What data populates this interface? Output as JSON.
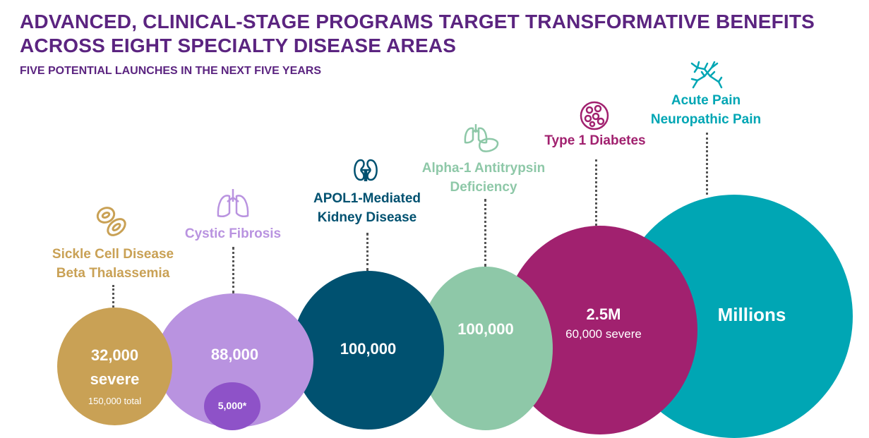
{
  "title_line1": "ADVANCED, CLINICAL-STAGE PROGRAMS TARGET TRANSFORMATIVE BENEFITS",
  "title_line2": "ACROSS EIGHT SPECIALTY DISEASE AREAS",
  "subtitle": "FIVE POTENTIAL LAUNCHES IN THE NEXT FIVE YEARS",
  "programs": [
    {
      "name_line1": "Sickle Cell Disease",
      "name_line2": "Beta Thalassemia",
      "value_line1": "32,000",
      "value_line2": "severe",
      "note": "150,000 total",
      "color": "#c9a155",
      "icon": "blood-cells-icon"
    },
    {
      "name_line1": "Cystic Fibrosis",
      "value": "88,000",
      "inner_value": "5,000*",
      "color": "#b993e0",
      "inner_color": "#8e52c8",
      "icon": "lungs-icon"
    },
    {
      "name_line1": "APOL1-Mediated",
      "name_line2": "Kidney Disease",
      "value": "100,000",
      "color": "#005170",
      "icon": "kidneys-icon"
    },
    {
      "name_line1": "Alpha-1 Antitrypsin",
      "name_line2": "Deficiency",
      "value": "100,000",
      "color": "#8ec8a8",
      "icon": "lungs-liver-icon"
    },
    {
      "name_line1": "Type 1 Diabetes",
      "value": "2.5M",
      "note": "60,000 severe",
      "color": "#a1216f",
      "icon": "pancreas-cells-icon"
    },
    {
      "name_line1": "Acute Pain",
      "name_line2": "Neuropathic Pain",
      "value": "Millions",
      "color": "#00a6b4",
      "icon": "neurons-icon"
    }
  ]
}
